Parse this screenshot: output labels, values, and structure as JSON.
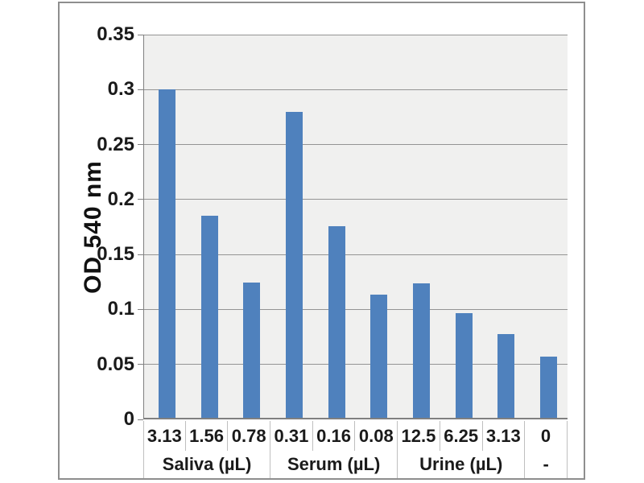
{
  "chart_data": {
    "type": "bar",
    "title": "",
    "ylabel": "OD 540 nm",
    "xlabel": "",
    "ylim": [
      0,
      0.35
    ],
    "yticks": [
      0,
      0.05,
      0.1,
      0.15,
      0.2,
      0.25,
      0.3,
      0.35
    ],
    "ytick_labels": [
      "0",
      "0.05",
      "0.1",
      "0.15",
      "0.2",
      "0.25",
      "0.3",
      "0.35"
    ],
    "categories": [
      "3.13",
      "1.56",
      "0.78",
      "0.31",
      "0.16",
      "0.08",
      "12.5",
      "6.25",
      "3.13",
      "0"
    ],
    "values": [
      0.299,
      0.184,
      0.123,
      0.278,
      0.174,
      0.112,
      0.122,
      0.095,
      0.076,
      0.056
    ],
    "groups": [
      {
        "label": "Saliva (µL)",
        "span": 3
      },
      {
        "label": "Serum (µL)",
        "span": 3
      },
      {
        "label": "Urine (µL)",
        "span": 3
      },
      {
        "label": "-",
        "span": 1
      }
    ],
    "legend": null,
    "grid": true,
    "bar_color": "#4f81bd",
    "plot_bg_color": "#f0f0ef",
    "gridline_color": "#949494",
    "axis_line_color": "#808080",
    "frame_border_color": "#8e8e8e"
  }
}
